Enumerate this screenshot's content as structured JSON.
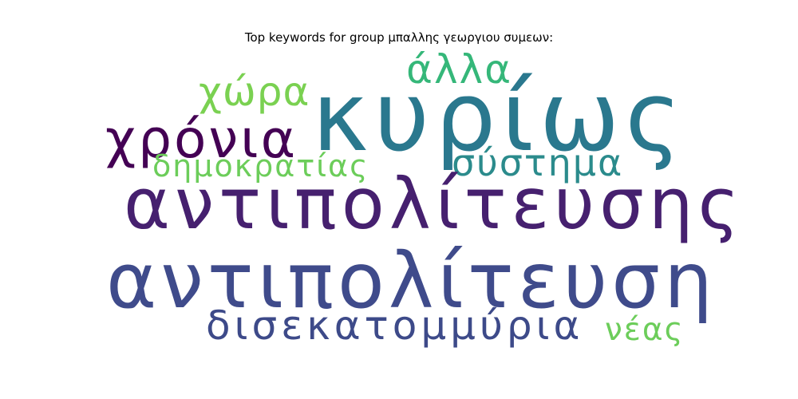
{
  "title": "Top keywords for group μπαλλης γεωργιου συμεων:",
  "words": {
    "kyriws": {
      "text": "κυρίως",
      "color": "#2a788e"
    },
    "antipoliteusis": {
      "text": "αντιπολίτευσης",
      "color": "#46206f"
    },
    "antipoliteusi": {
      "text": "αντιπολίτευση",
      "color": "#3f4b8b"
    },
    "xronia": {
      "text": "χρόνια",
      "color": "#440154"
    },
    "diseka": {
      "text": "δισεκατομμύρια",
      "color": "#3d4a89"
    },
    "xwra": {
      "text": "χώρα",
      "color": "#7ad151"
    },
    "alla": {
      "text": "άλλα",
      "color": "#35b779"
    },
    "systima": {
      "text": "σύστημα",
      "color": "#2b8b8c"
    },
    "dimokratias": {
      "text": "δημοκρατίας",
      "color": "#6ccd5a"
    },
    "neas": {
      "text": "νέας",
      "color": "#6ccd5a"
    }
  }
}
